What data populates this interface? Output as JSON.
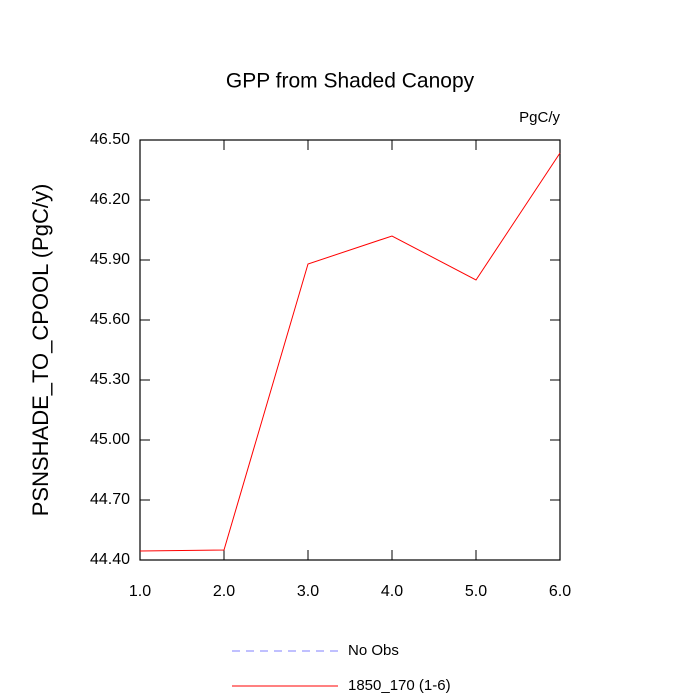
{
  "chart_data": {
    "type": "line",
    "title": "GPP from Shaded Canopy",
    "units": "PgC/y",
    "y_label": "PSNSHADE_TO_CPOOL  (PgC/y)",
    "x": [
      1,
      2,
      3,
      4,
      5,
      6
    ],
    "series": [
      {
        "name": "No Obs",
        "color": "#8080ff",
        "dashed": true,
        "values": [
          null,
          null,
          null,
          null,
          null,
          null
        ]
      },
      {
        "name": "1850_170 (1-6)",
        "color": "#ff0000",
        "dashed": false,
        "values": [
          44.445,
          44.45,
          45.88,
          46.02,
          45.8,
          46.435
        ]
      }
    ],
    "xlim": [
      1,
      6
    ],
    "xticks": [
      {
        "value": 1,
        "label": "1.0"
      },
      {
        "value": 2,
        "label": "2.0"
      },
      {
        "value": 3,
        "label": "3.0"
      },
      {
        "value": 4,
        "label": "4.0"
      },
      {
        "value": 5,
        "label": "5.0"
      },
      {
        "value": 6,
        "label": "6.0"
      }
    ],
    "ylim": [
      44.4,
      46.5
    ],
    "yticks": [
      {
        "value": 44.4,
        "label": "44.40"
      },
      {
        "value": 44.7,
        "label": "44.70"
      },
      {
        "value": 45,
        "label": "45.00"
      },
      {
        "value": 45.3,
        "label": "45.30"
      },
      {
        "value": 45.6,
        "label": "45.60"
      },
      {
        "value": 45.9,
        "label": "45.90"
      },
      {
        "value": 46.2,
        "label": "46.20"
      },
      {
        "value": 46.5,
        "label": "46.50"
      }
    ]
  }
}
